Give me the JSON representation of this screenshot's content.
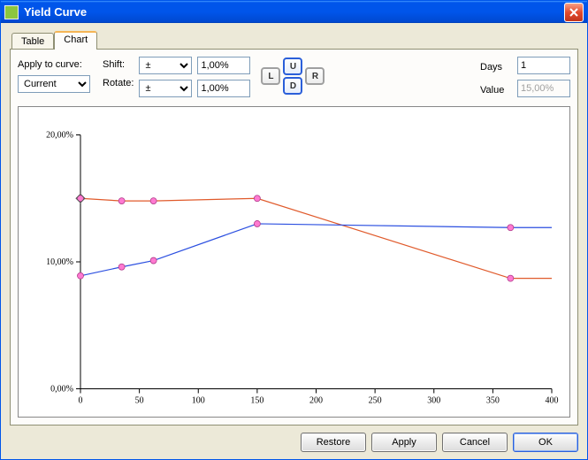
{
  "window": {
    "title": "Yield Curve"
  },
  "tabs": {
    "table": "Table",
    "chart": "Chart",
    "active": "chart"
  },
  "controls": {
    "apply_label": "Apply to curve:",
    "curve_select": "Current",
    "shift_label": "Shift:",
    "shift_sign": "±",
    "shift_value": "1,00%",
    "rotate_label": "Rotate:",
    "rotate_sign": "±",
    "rotate_value": "1,00%",
    "btn_L": "L",
    "btn_U": "U",
    "btn_D": "D",
    "btn_R": "R",
    "days_label": "Days",
    "days_value": "1",
    "value_label": "Value",
    "value_value": "15,00%"
  },
  "buttons": {
    "restore": "Restore",
    "apply": "Apply",
    "cancel": "Cancel",
    "ok": "OK"
  },
  "chart": {
    "type": "line",
    "background_color": "#ffffff",
    "border_color": "#000000",
    "xlim": [
      0,
      400
    ],
    "ylim": [
      0,
      20
    ],
    "xticks": [
      0,
      50,
      100,
      150,
      200,
      250,
      300,
      350,
      400
    ],
    "yticks": [
      0,
      10,
      20
    ],
    "ytick_labels": [
      "0,00%",
      "10,00%",
      "20,00%"
    ],
    "tick_font_size": 10,
    "marker_radius": 3.5,
    "marker_fill": "#ff7ad1",
    "marker_stroke": "#b03a8a",
    "series": [
      {
        "name": "curve-red",
        "color": "#e05a2b",
        "width": 1.2,
        "points": [
          [
            0,
            15.0
          ],
          [
            35,
            14.8
          ],
          [
            62,
            14.8
          ],
          [
            150,
            15.0
          ],
          [
            365,
            8.7
          ],
          [
            400,
            8.7
          ]
        ]
      },
      {
        "name": "curve-blue",
        "color": "#2b4fe0",
        "width": 1.2,
        "markers_from_red": false,
        "points": [
          [
            0,
            8.9
          ],
          [
            35,
            9.6
          ],
          [
            62,
            10.1
          ],
          [
            150,
            13.0
          ],
          [
            365,
            12.7
          ],
          [
            400,
            12.7
          ]
        ]
      }
    ],
    "extra_marker": [
      0,
      15.0
    ]
  }
}
